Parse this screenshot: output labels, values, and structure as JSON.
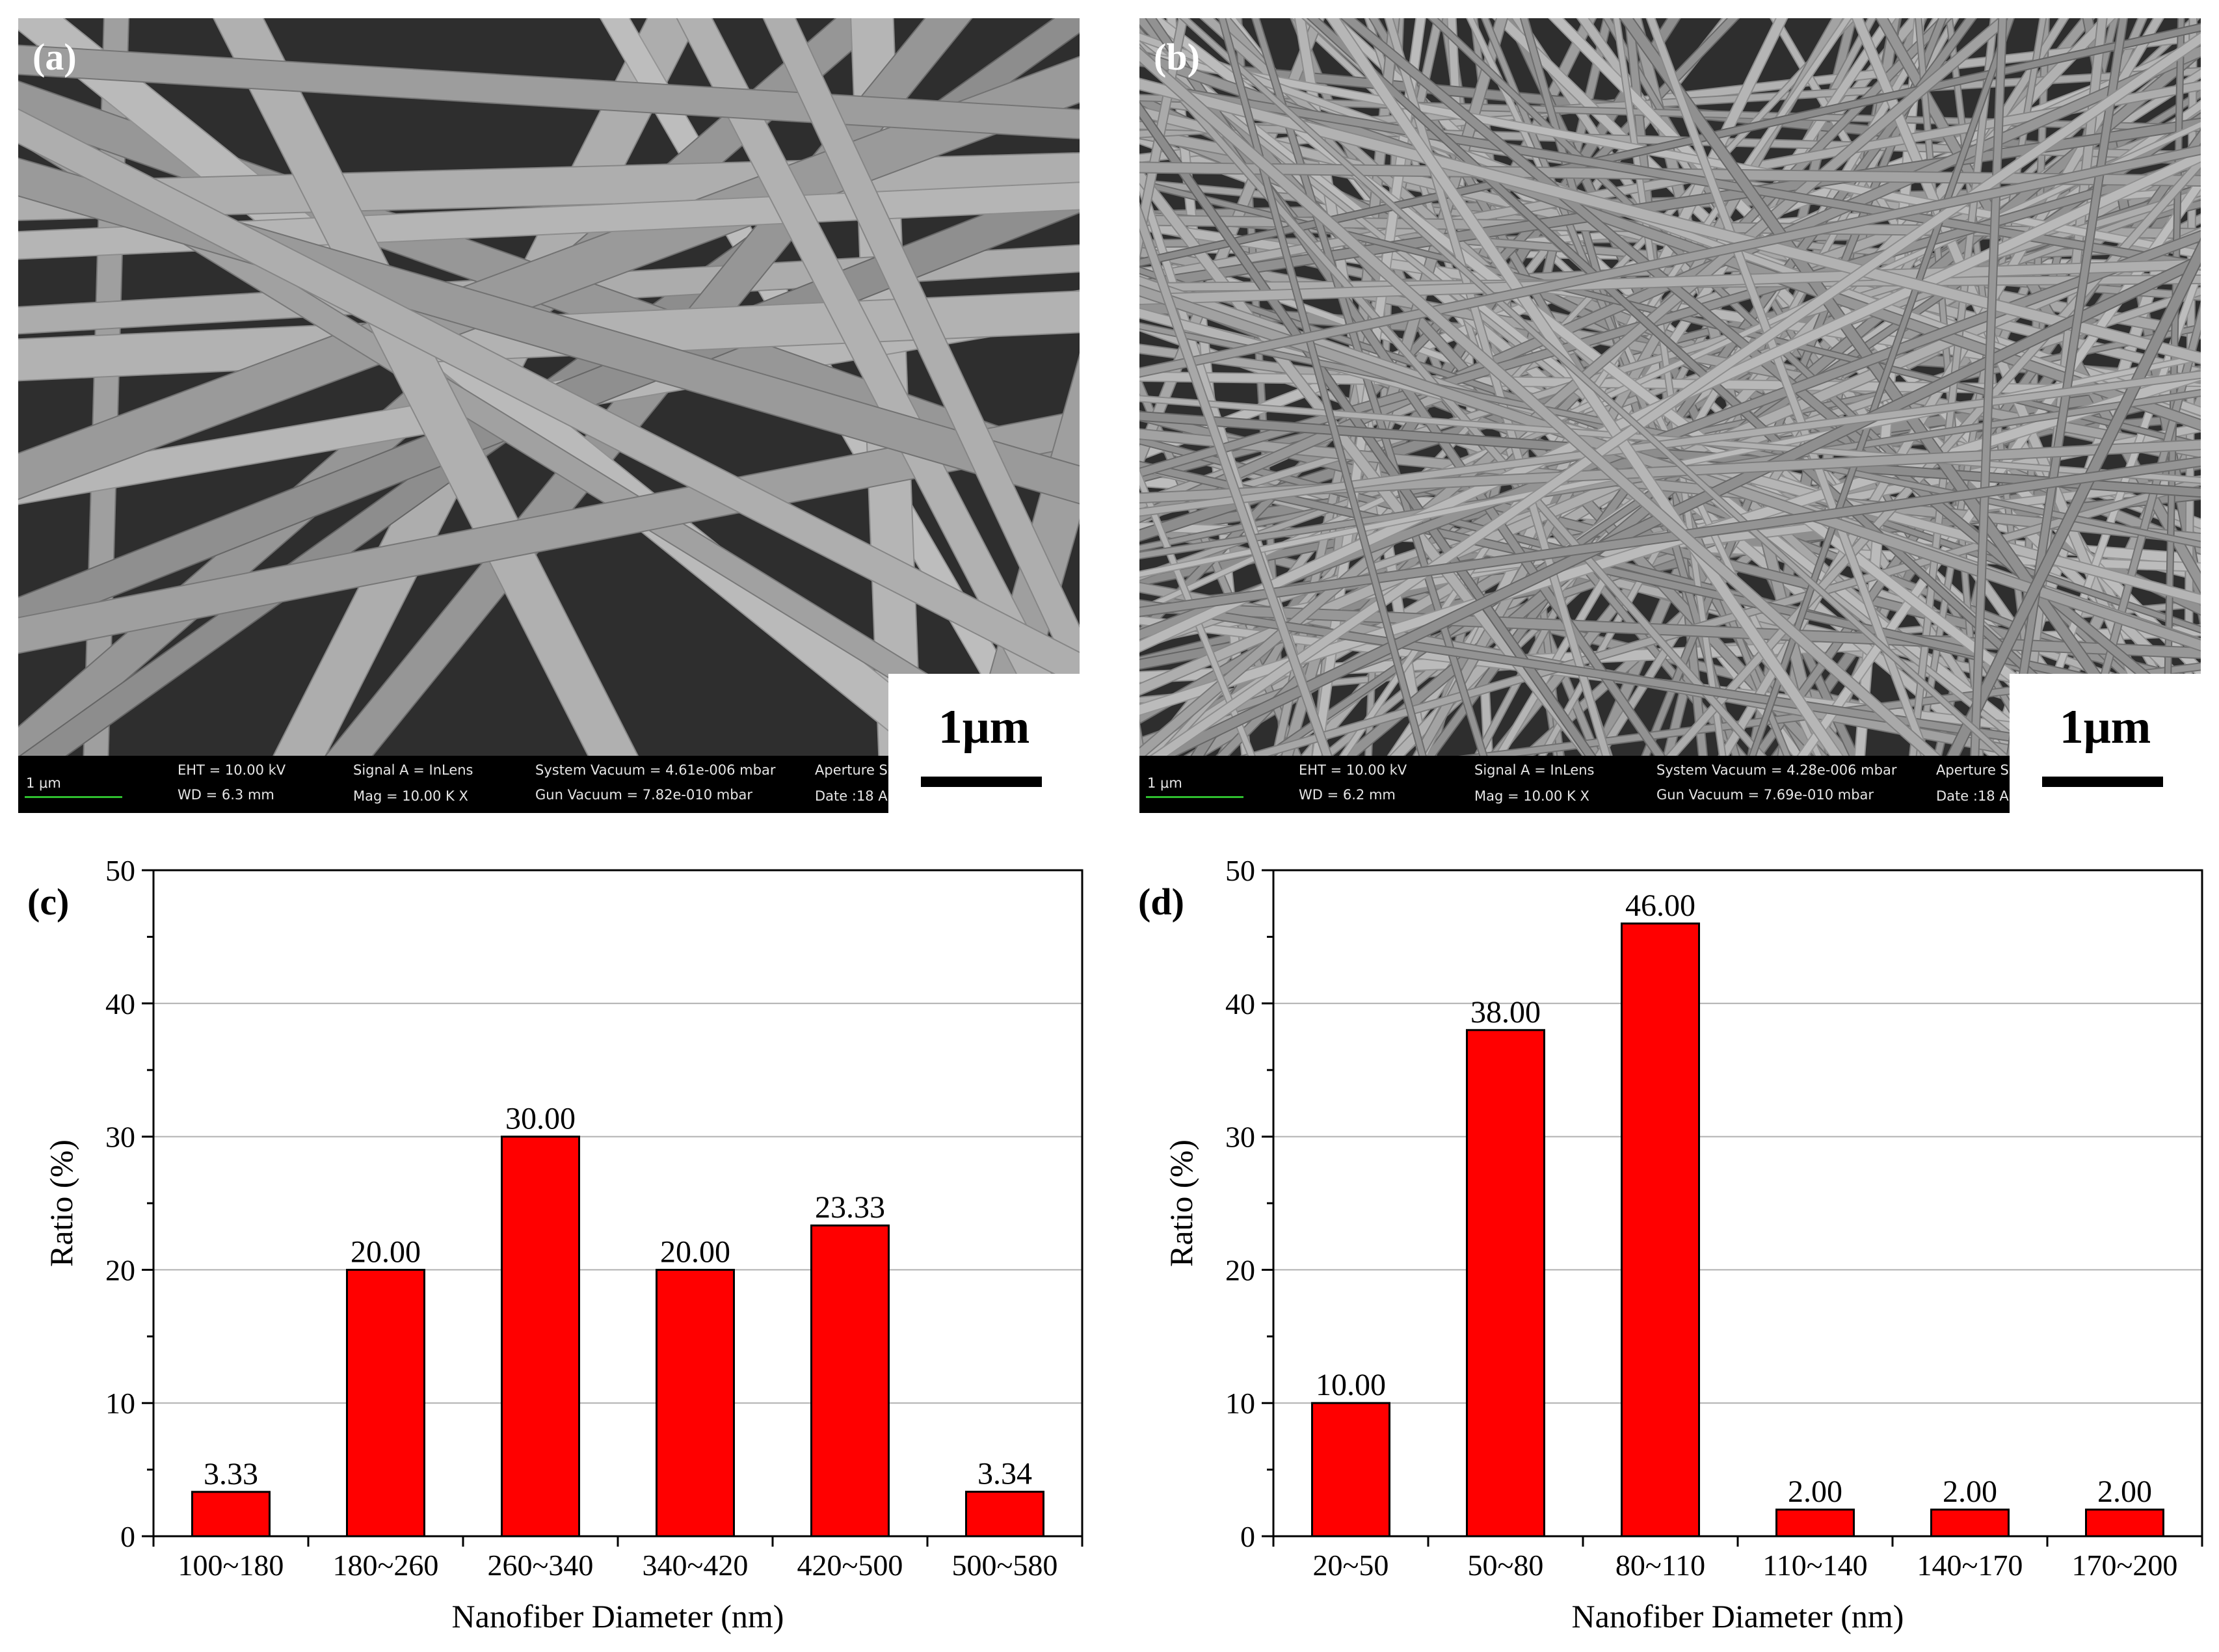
{
  "panels": {
    "a": {
      "tag": "(a)",
      "scale_label": "1μm",
      "info": {
        "scale_small": "1 μm",
        "eht": "EHT = 10.00 kV",
        "wd": "WD =  6.3 mm",
        "signal": "Signal A = InLens",
        "mag": "Mag =  10.00 K X",
        "system_vacuum": "System Vacuum = 4.61e-006 mbar",
        "gun_vacuum": "Gun Vacuum = 7.82e-010 mbar",
        "aperture": "Aperture S",
        "date": "Date :18 A"
      }
    },
    "b": {
      "tag": "(b)",
      "scale_label": "1μm",
      "info": {
        "scale_small": "1 μm",
        "eht": "EHT = 10.00 kV",
        "wd": "WD =  6.2 mm",
        "signal": "Signal A = InLens",
        "mag": "Mag =  10.00 K X",
        "system_vacuum": "System Vacuum = 4.28e-006 mbar",
        "gun_vacuum": "Gun Vacuum = 7.69e-010 mbar",
        "aperture": "Aperture S",
        "date": "Date :18 A"
      }
    }
  },
  "colors": {
    "bar": "#ff0000",
    "grid": "#b0b0b0"
  },
  "chart_data": [
    {
      "panel": "(c)",
      "type": "bar",
      "categories": [
        "100~180",
        "180~260",
        "260~340",
        "340~420",
        "420~500",
        "500~580"
      ],
      "values": [
        3.33,
        20.0,
        30.0,
        20.0,
        23.33,
        3.34
      ],
      "data_labels": [
        "3.33",
        "20.00",
        "30.00",
        "20.00",
        "23.33",
        "3.34"
      ],
      "xlabel": "Nanofiber Diameter (nm)",
      "ylabel": "Ratio (%)",
      "ylim": [
        0,
        50
      ],
      "yticks": [
        "0",
        "10",
        "20",
        "30",
        "40",
        "50"
      ],
      "grid": true
    },
    {
      "panel": "(d)",
      "type": "bar",
      "categories": [
        "20~50",
        "50~80",
        "80~110",
        "110~140",
        "140~170",
        "170~200"
      ],
      "values": [
        10.0,
        38.0,
        46.0,
        2.0,
        2.0,
        2.0
      ],
      "data_labels": [
        "10.00",
        "38.00",
        "46.00",
        "2.00",
        "2.00",
        "2.00"
      ],
      "xlabel": "Nanofiber Diameter (nm)",
      "ylabel": "Ratio (%)",
      "ylim": [
        0,
        50
      ],
      "yticks": [
        "0",
        "10",
        "20",
        "30",
        "40",
        "50"
      ],
      "grid": true
    }
  ]
}
